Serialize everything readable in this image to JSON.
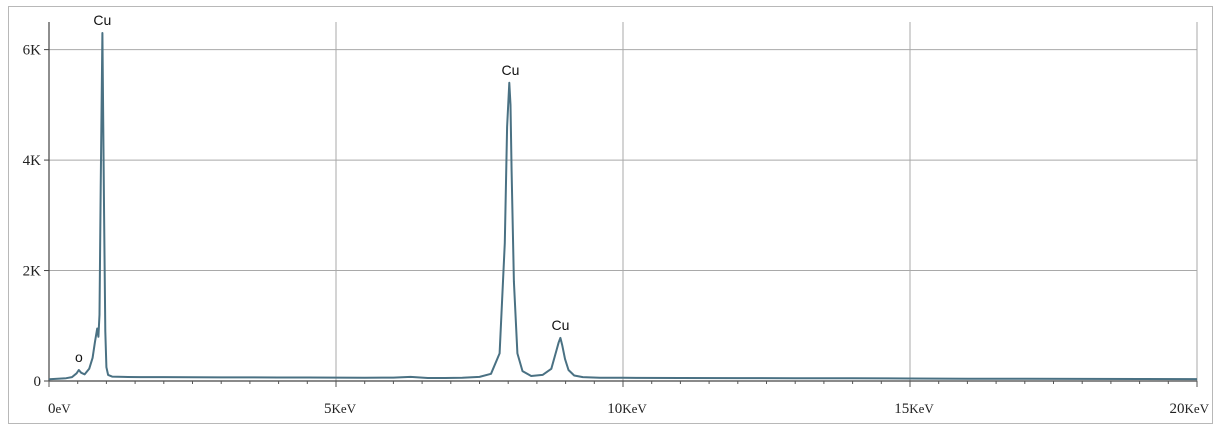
{
  "chart_data": {
    "type": "line",
    "title": "",
    "xlabel": "",
    "ylabel": "",
    "x_unit": "keV",
    "xlim": [
      0,
      20
    ],
    "ylim": [
      0,
      6500
    ],
    "grid": true,
    "line_color": "#4a7183",
    "y_ticks": [
      {
        "value": 0,
        "label": "0"
      },
      {
        "value": 2000,
        "label": "2K"
      },
      {
        "value": 4000,
        "label": "4K"
      },
      {
        "value": 6000,
        "label": "6K"
      }
    ],
    "x_ticks": [
      {
        "value": 0,
        "num": "0",
        "unit": "eV"
      },
      {
        "value": 5,
        "num": "5",
        "unit": "KeV"
      },
      {
        "value": 10,
        "num": "10",
        "unit": "KeV"
      },
      {
        "value": 15,
        "num": "15",
        "unit": "KeV"
      },
      {
        "value": 20,
        "num": "20",
        "unit": "KeV"
      }
    ],
    "peak_labels": [
      {
        "label": "o",
        "x": 0.52,
        "y": 200
      },
      {
        "label": "Cu",
        "x": 0.93,
        "y": 6300
      },
      {
        "label": "Cu",
        "x": 8.04,
        "y": 5400
      },
      {
        "label": "Cu",
        "x": 8.91,
        "y": 780
      }
    ],
    "series": [
      {
        "x": [
          0.0,
          0.15,
          0.3,
          0.4,
          0.48,
          0.52,
          0.56,
          0.62,
          0.7,
          0.76,
          0.8,
          0.84,
          0.86,
          0.88,
          0.9,
          0.93,
          0.96,
          0.98,
          1.0,
          1.03,
          1.1,
          1.3,
          1.6,
          2.0,
          2.5,
          3.0,
          3.5,
          4.0,
          4.5,
          5.0,
          5.5,
          6.0,
          6.3,
          6.6,
          6.9,
          7.2,
          7.5,
          7.7,
          7.85,
          7.94,
          7.98,
          8.02,
          8.04,
          8.06,
          8.1,
          8.16,
          8.25,
          8.4,
          8.6,
          8.75,
          8.84,
          8.88,
          8.91,
          8.94,
          8.99,
          9.05,
          9.15,
          9.3,
          9.6,
          10.0,
          11.0,
          12.0,
          13.0,
          14.0,
          15.0,
          16.0,
          17.0,
          18.0,
          19.0,
          20.0
        ],
        "y": [
          30,
          40,
          50,
          70,
          140,
          200,
          150,
          120,
          220,
          420,
          700,
          950,
          800,
          1200,
          3500,
          6300,
          3000,
          900,
          250,
          110,
          80,
          75,
          70,
          70,
          68,
          66,
          65,
          64,
          63,
          62,
          60,
          62,
          75,
          55,
          55,
          60,
          75,
          130,
          500,
          2500,
          4600,
          5400,
          5000,
          3800,
          1800,
          500,
          180,
          90,
          110,
          220,
          550,
          700,
          780,
          650,
          400,
          200,
          100,
          70,
          60,
          58,
          55,
          52,
          50,
          48,
          45,
          42,
          40,
          38,
          36,
          35
        ]
      }
    ]
  }
}
